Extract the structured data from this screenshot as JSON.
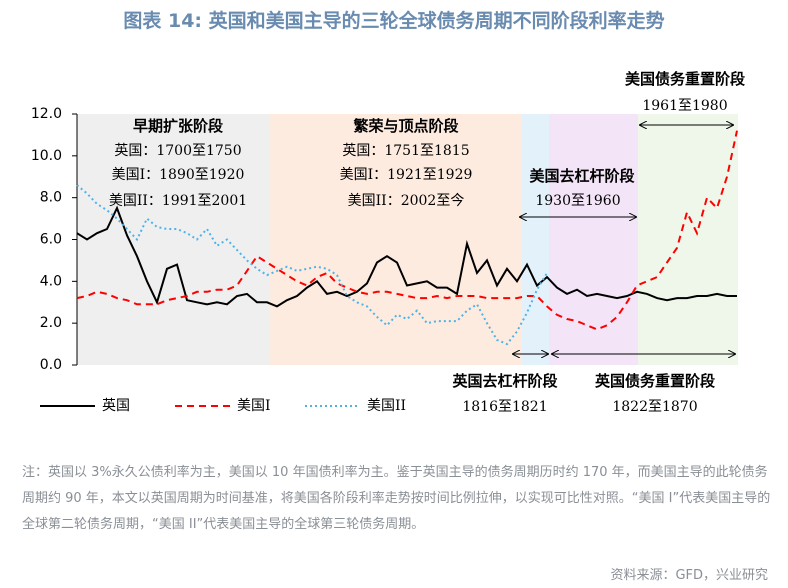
{
  "title": "图表 14: 英国和美国主导的三轮全球债务周期不同阶段利率走势",
  "chart_data": {
    "type": "line",
    "ylim": [
      0,
      12
    ],
    "yticks": [
      {
        "value": 0,
        "label": "0.0"
      },
      {
        "value": 2,
        "label": "2.0"
      },
      {
        "value": 4,
        "label": "4.0"
      },
      {
        "value": 6,
        "label": "6.0"
      },
      {
        "value": 8,
        "label": "8.0"
      },
      {
        "value": 10,
        "label": "10.0"
      },
      {
        "value": 12,
        "label": "12.0"
      }
    ],
    "series": [
      {
        "name": "英国",
        "color": "#000000",
        "dash": "solid",
        "values": [
          6.3,
          6.0,
          6.3,
          6.5,
          7.5,
          6.2,
          5.2,
          4.0,
          3.0,
          4.6,
          4.8,
          3.1,
          3.0,
          2.9,
          3.0,
          2.9,
          3.3,
          3.4,
          3.0,
          3.0,
          2.8,
          3.1,
          3.3,
          3.7,
          4.0,
          3.4,
          3.5,
          3.3,
          3.5,
          3.9,
          4.9,
          5.2,
          4.9,
          3.8,
          3.9,
          4.0,
          3.7,
          3.7,
          3.4,
          5.8,
          4.4,
          5.0,
          3.8,
          4.6,
          4.0,
          4.8,
          3.8,
          4.2,
          3.7,
          3.4,
          3.6,
          3.3,
          3.4,
          3.3,
          3.2,
          3.3,
          3.5,
          3.4,
          3.2,
          3.1,
          3.2,
          3.2,
          3.3,
          3.3,
          3.4,
          3.3,
          3.3
        ]
      },
      {
        "name": "美国I",
        "color": "#ff0000",
        "dash": "dashed",
        "values": [
          3.2,
          3.3,
          3.5,
          3.4,
          3.2,
          3.1,
          2.9,
          2.9,
          2.9,
          3.1,
          3.2,
          3.3,
          3.5,
          3.5,
          3.6,
          3.6,
          3.8,
          4.5,
          5.2,
          4.9,
          4.6,
          4.3,
          4.0,
          3.8,
          4.2,
          4.4,
          3.9,
          3.7,
          3.5,
          3.4,
          3.5,
          3.5,
          3.4,
          3.3,
          3.2,
          3.2,
          3.3,
          3.2,
          3.3,
          3.3,
          3.3,
          3.2,
          3.2,
          3.2,
          3.2,
          3.3,
          3.3,
          2.8,
          2.4,
          2.2,
          2.1,
          1.9,
          1.7,
          1.9,
          2.3,
          3.0,
          3.8,
          4.0,
          4.2,
          4.9,
          5.6,
          7.3,
          6.3,
          8.0,
          7.5,
          9.0,
          11.2
        ]
      },
      {
        "name": "美国II",
        "color": "#4fb3e8",
        "dash": "dotted",
        "values": [
          8.6,
          8.2,
          7.7,
          7.4,
          7.0,
          6.5,
          6.0,
          7.0,
          6.6,
          6.5,
          6.5,
          6.3,
          6.0,
          6.5,
          5.7,
          6.0,
          5.5,
          5.0,
          4.6,
          4.3,
          4.5,
          4.7,
          4.5,
          4.6,
          4.7,
          4.6,
          4.3,
          3.3,
          3.0,
          2.8,
          2.3,
          1.9,
          2.4,
          2.2,
          2.6,
          2.0,
          2.1,
          2.1,
          2.1,
          2.6,
          2.9,
          2.0,
          1.2,
          1.0,
          1.6,
          2.5,
          3.6,
          4.4,
          null,
          null,
          null,
          null,
          null,
          null,
          null,
          null,
          null,
          null,
          null,
          null,
          null,
          null,
          null,
          null,
          null,
          null,
          null
        ]
      }
    ],
    "annotations": [
      "早期扩张阶段",
      "英国：1700至1750",
      "美国I：1890至1920",
      "美国II：1991至2001",
      "繁荣与顶点阶段",
      "英国：1751至1815",
      "美国I：1921至1929",
      "美国II：2002至今",
      "美国去杠杆阶段",
      "1930至1960",
      "美国债务重置阶段",
      "1961至1980",
      "英国去杠杆阶段",
      "1816至1821",
      "英国债务重置阶段",
      "1822至1870"
    ]
  },
  "note": "注：英国以 3%永久公债利率为主，美国以 10 年国债利率为主。鉴于英国主导的债务周期历时约 170 年，而美国主导的此轮债务周期约 90 年，本文以英国周期为时间基准，将美国各阶段利率走势按时间比例拉伸，以实现可比性对照。“美国 I”代表美国主导的全球第二轮债务周期，“美国 II”代表美国主导的全球第三轮债务周期。",
  "source": "资料来源：GFD，兴业研究"
}
